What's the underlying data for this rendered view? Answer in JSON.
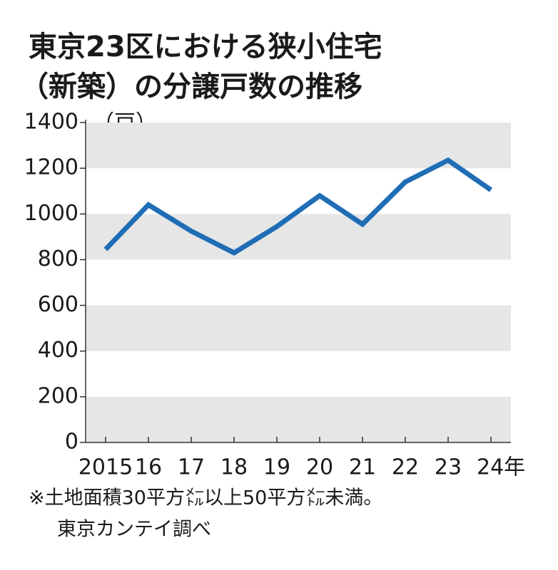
{
  "chart_data": {
    "type": "line",
    "title": [
      "東京23区における狭小住宅",
      "（新築）の分譲戸数の推移"
    ],
    "unit_label": "（戸）",
    "categories": [
      "2015",
      "16",
      "17",
      "18",
      "19",
      "20",
      "21",
      "22",
      "23",
      "24年"
    ],
    "series": [
      {
        "name": "分譲戸数",
        "color": "#1f6db5",
        "values": [
          845,
          1040,
          925,
          830,
          945,
          1080,
          955,
          1140,
          1235,
          1105
        ]
      }
    ],
    "ylim": [
      0,
      1400
    ],
    "yticks": [
      0,
      200,
      400,
      600,
      800,
      1000,
      1200,
      1400
    ],
    "grid": true,
    "notes": [
      "※土地面積30平方㍍以上50平方㍍未満。",
      "東京カンテイ調べ"
    ]
  }
}
